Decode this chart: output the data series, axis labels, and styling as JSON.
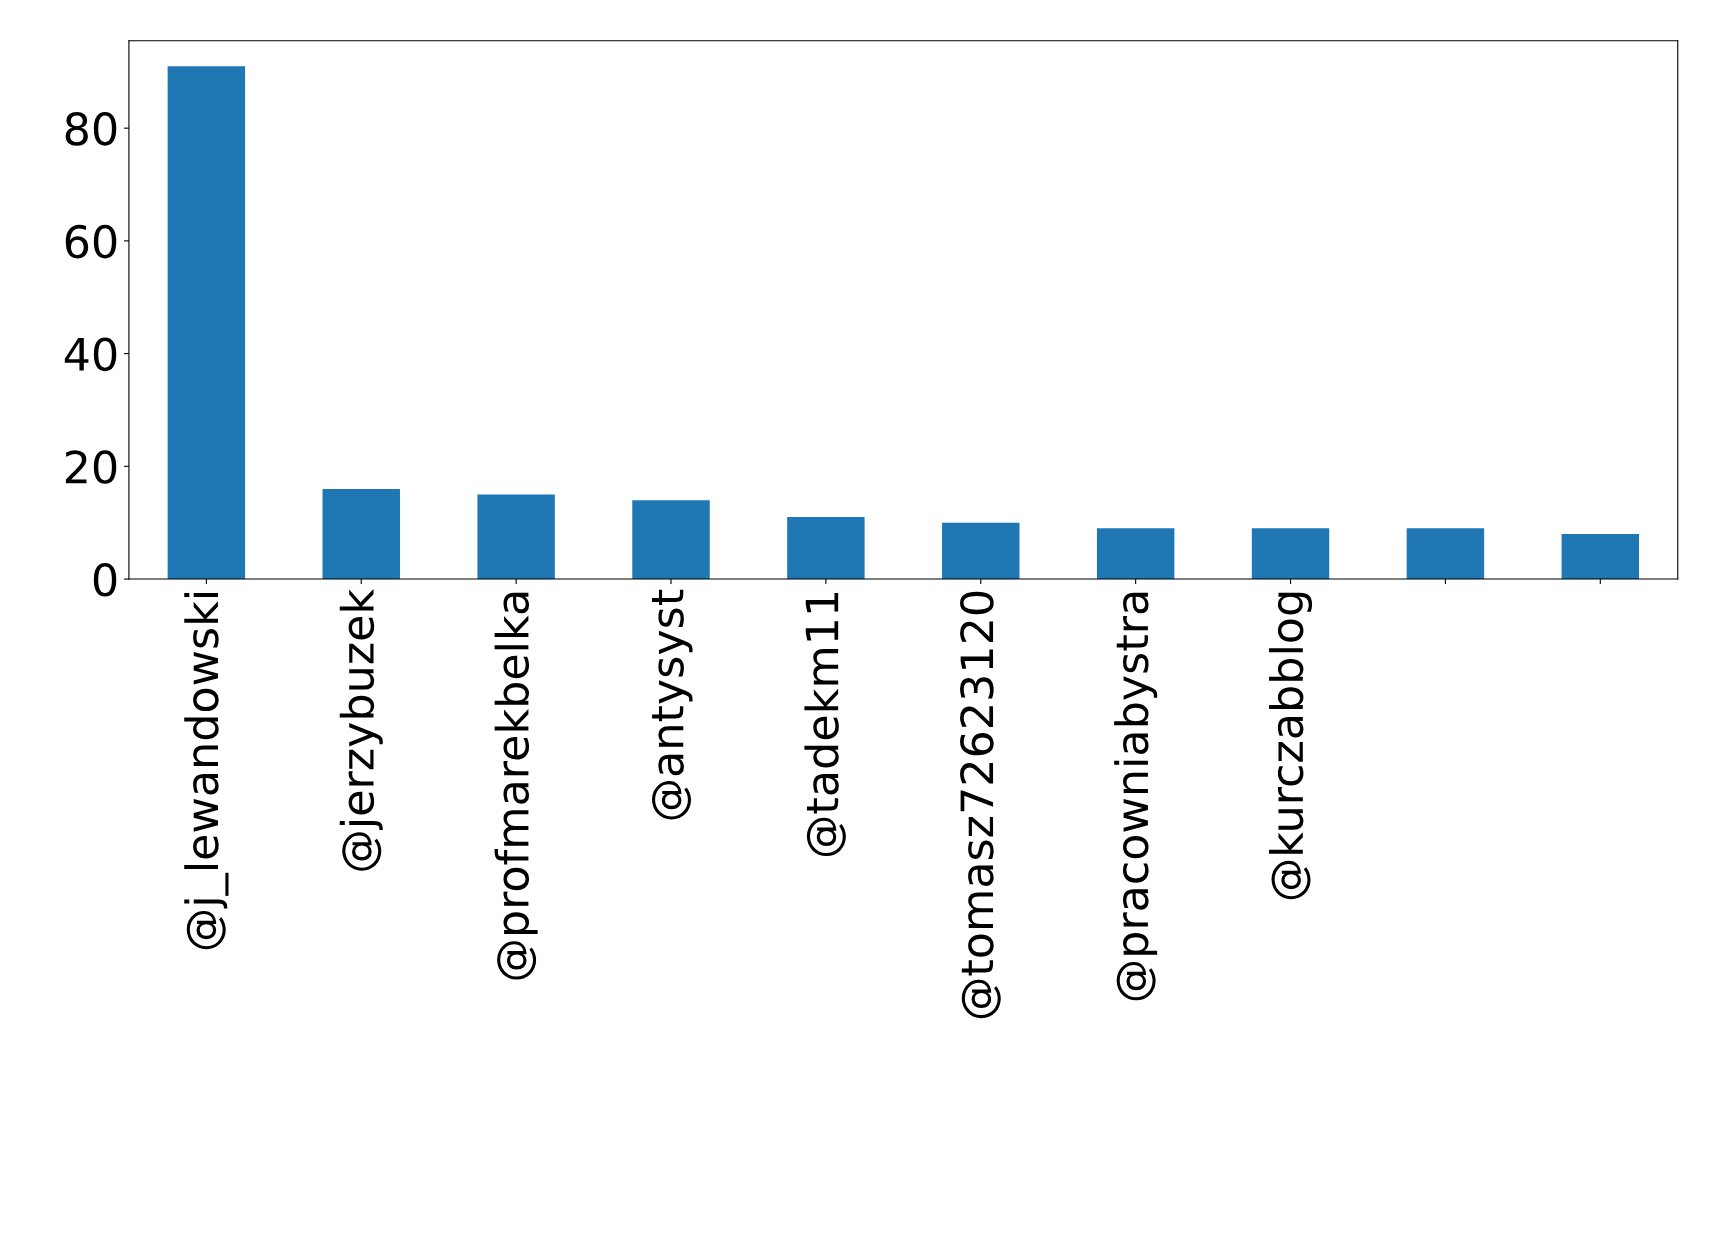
{
  "chart_data": {
    "type": "bar",
    "categories": [
      "@j_lewandowski",
      "@jerzybuzek",
      "@profmarekbelka",
      "@antysyst",
      "@tadekm11",
      "@tomasz72623120",
      "@pracowniabystra",
      "@kurczabblog",
      null,
      null
    ],
    "values": [
      91,
      16,
      15,
      14,
      11,
      10,
      9,
      9,
      9,
      8
    ],
    "color": "#1f77b4",
    "ylim": [
      0,
      95.5
    ],
    "yticks": [
      0,
      20,
      40,
      60,
      80
    ],
    "grid": false,
    "legend": false
  }
}
